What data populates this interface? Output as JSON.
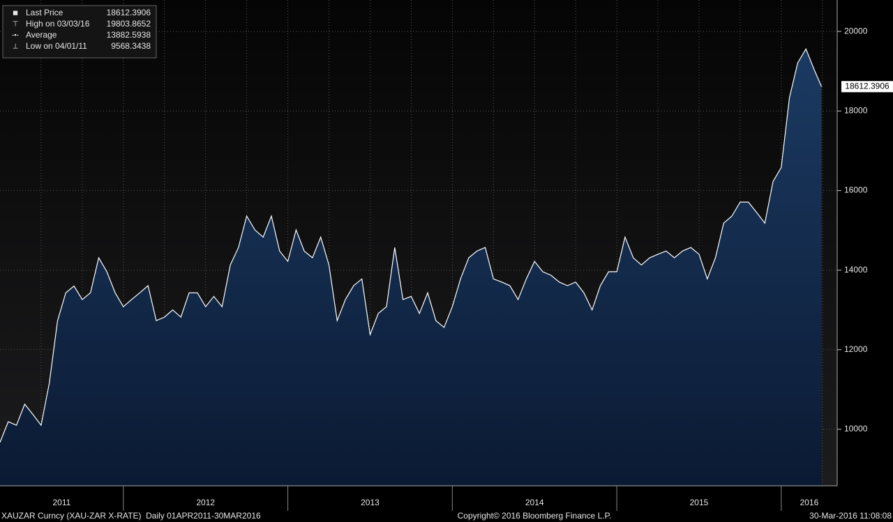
{
  "chart_data": {
    "type": "area",
    "legend": [
      {
        "label": "Last Price",
        "value": 18612.3906
      },
      {
        "label": "High on 03/03/16",
        "value": 19803.8652
      },
      {
        "label": "Average",
        "value": 13882.5938
      },
      {
        "label": "Low on 04/01/11",
        "value": 9568.3438
      }
    ],
    "last_price_label": 18612.3906,
    "series": [
      {
        "color": "#ffffff",
        "fill": "#17355a",
        "x": [
          2011.25,
          2011.3,
          2011.35,
          2011.4,
          2011.45,
          2011.5,
          2011.55,
          2011.6,
          2011.65,
          2011.7,
          2011.75,
          2011.8,
          2011.85,
          2011.9,
          2011.95,
          2012.0,
          2012.05,
          2012.1,
          2012.15,
          2012.2,
          2012.25,
          2012.3,
          2012.35,
          2012.4,
          2012.45,
          2012.5,
          2012.55,
          2012.6,
          2012.65,
          2012.7,
          2012.75,
          2012.8,
          2012.85,
          2012.9,
          2012.95,
          2013.0,
          2013.05,
          2013.1,
          2013.15,
          2013.2,
          2013.25,
          2013.3,
          2013.35,
          2013.4,
          2013.45,
          2013.5,
          2013.55,
          2013.6,
          2013.65,
          2013.7,
          2013.75,
          2013.8,
          2013.85,
          2013.9,
          2013.95,
          2014.0,
          2014.05,
          2014.1,
          2014.15,
          2014.2,
          2014.25,
          2014.3,
          2014.35,
          2014.4,
          2014.45,
          2014.5,
          2014.55,
          2014.6,
          2014.65,
          2014.7,
          2014.75,
          2014.8,
          2014.85,
          2014.9,
          2014.95,
          2015.0,
          2015.05,
          2015.1,
          2015.15,
          2015.2,
          2015.25,
          2015.3,
          2015.35,
          2015.4,
          2015.45,
          2015.5,
          2015.55,
          2015.6,
          2015.65,
          2015.7,
          2015.75,
          2015.8,
          2015.85,
          2015.9,
          2015.95,
          2016.0,
          2016.05,
          2016.1,
          2016.15,
          2016.2,
          2016.245
        ],
        "values": [
          9670,
          10190,
          10100,
          10630,
          10370,
          10100,
          11160,
          12730,
          13430,
          13600,
          13260,
          13430,
          14310,
          13960,
          13430,
          13080,
          13260,
          13430,
          13610,
          12730,
          12820,
          13000,
          12820,
          13430,
          13430,
          13080,
          13340,
          13080,
          14130,
          14570,
          15360,
          15010,
          14830,
          15360,
          14480,
          14220,
          15010,
          14480,
          14310,
          14830,
          14130,
          12730,
          13260,
          13610,
          13780,
          12380,
          12910,
          13080,
          14570,
          13260,
          13340,
          12910,
          13430,
          12730,
          12560,
          13080,
          13780,
          14310,
          14480,
          14570,
          13780,
          13700,
          13610,
          13260,
          13780,
          14220,
          13960,
          13870,
          13700,
          13610,
          13700,
          13430,
          13000,
          13610,
          13960,
          13960,
          14830,
          14310,
          14130,
          14310,
          14400,
          14480,
          14310,
          14480,
          14570,
          14400,
          13780,
          14310,
          15180,
          15360,
          15710,
          15710,
          15450,
          15180,
          16230,
          16580,
          18340,
          19210,
          19560,
          19040,
          18612
        ]
      }
    ],
    "xlim": [
      2011.25,
      2016.34
    ],
    "xticks": [
      {
        "value": 2011,
        "label": "2011"
      },
      {
        "value": 2012,
        "label": "2012"
      },
      {
        "value": 2013,
        "label": "2013"
      },
      {
        "value": 2014,
        "label": "2014"
      },
      {
        "value": 2015,
        "label": "2015"
      },
      {
        "value": 2016,
        "label": "2016"
      }
    ],
    "ylim": [
      8580,
      20790
    ],
    "yticks": [
      10000,
      12000,
      14000,
      16000,
      18000,
      20000
    ],
    "grid": true,
    "footer_left": "XAUZAR Curncy (XAU-ZAR X-RATE)  Daily 01APR2011-30MAR2016",
    "footer_center": "Copyright© 2016 Bloomberg Finance L.P.",
    "footer_right": "30-Mar-2016 11:08:08"
  }
}
